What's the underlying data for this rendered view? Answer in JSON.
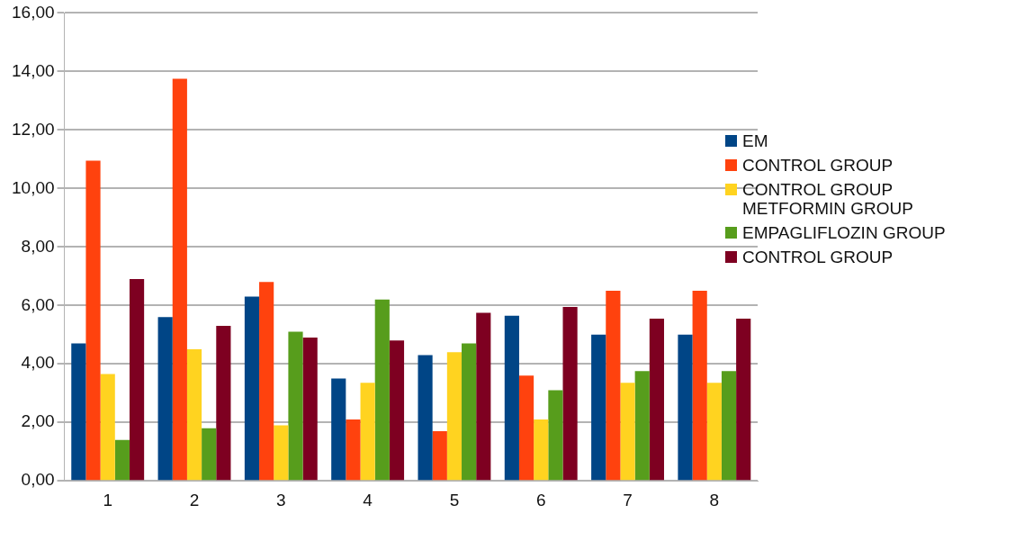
{
  "chart_data": {
    "type": "bar",
    "categories": [
      "1",
      "2",
      "3",
      "4",
      "5",
      "6",
      "7",
      "8"
    ],
    "series": [
      {
        "name": "EM",
        "color": "#004586",
        "values": [
          4.7,
          5.6,
          6.3,
          3.5,
          4.3,
          5.65,
          5.0,
          5.0
        ]
      },
      {
        "name": "CONTROL GROUP",
        "color": "#ff420e",
        "values": [
          10.95,
          13.75,
          6.8,
          2.1,
          1.7,
          3.6,
          6.5,
          6.5
        ]
      },
      {
        "name": "CONTROL GROUP METFORMIN GROUP",
        "color": "#ffd320",
        "values": [
          3.65,
          4.5,
          1.9,
          3.35,
          4.4,
          2.1,
          3.35,
          3.35
        ]
      },
      {
        "name": "EMPAGLIFLOZIN GROUP",
        "color": "#579d1c",
        "values": [
          1.4,
          1.8,
          5.1,
          6.2,
          4.7,
          3.1,
          3.75,
          3.75
        ]
      },
      {
        "name": "CONTROL GROUP",
        "color": "#7e0021",
        "values": [
          6.9,
          5.3,
          4.9,
          4.8,
          5.75,
          5.95,
          5.55,
          5.55
        ]
      }
    ],
    "ylim": [
      0,
      16
    ],
    "yticks": [
      {
        "value": 0,
        "label": "0,00"
      },
      {
        "value": 2,
        "label": "2,00"
      },
      {
        "value": 4,
        "label": "4,00"
      },
      {
        "value": 6,
        "label": "6,00"
      },
      {
        "value": 8,
        "label": "8,00"
      },
      {
        "value": 10,
        "label": "10,00"
      },
      {
        "value": 12,
        "label": "12,00"
      },
      {
        "value": 14,
        "label": "14,00"
      },
      {
        "value": 16,
        "label": "16,00"
      }
    ],
    "grid": "y",
    "legend": "right"
  }
}
